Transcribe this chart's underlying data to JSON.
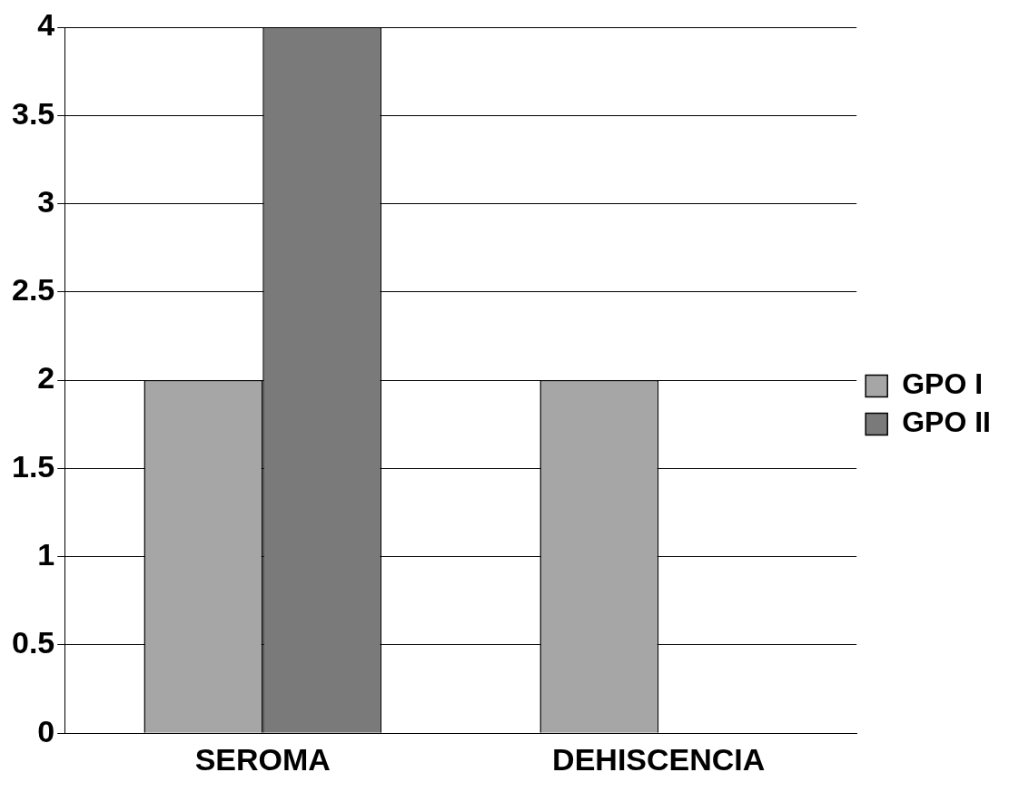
{
  "chart_data": {
    "type": "bar",
    "categories": [
      "SEROMA",
      "DEHISCENCIA"
    ],
    "series": [
      {
        "name": "GPO I",
        "color": "#a6a6a6",
        "values": [
          2,
          2
        ]
      },
      {
        "name": "GPO II",
        "color": "#7a7a7a",
        "values": [
          4,
          0
        ]
      }
    ],
    "ylim": [
      0,
      4
    ],
    "yticks": [
      0,
      0.5,
      1,
      1.5,
      2,
      2.5,
      3,
      3.5,
      4
    ],
    "grid": "y",
    "legend": "right"
  }
}
